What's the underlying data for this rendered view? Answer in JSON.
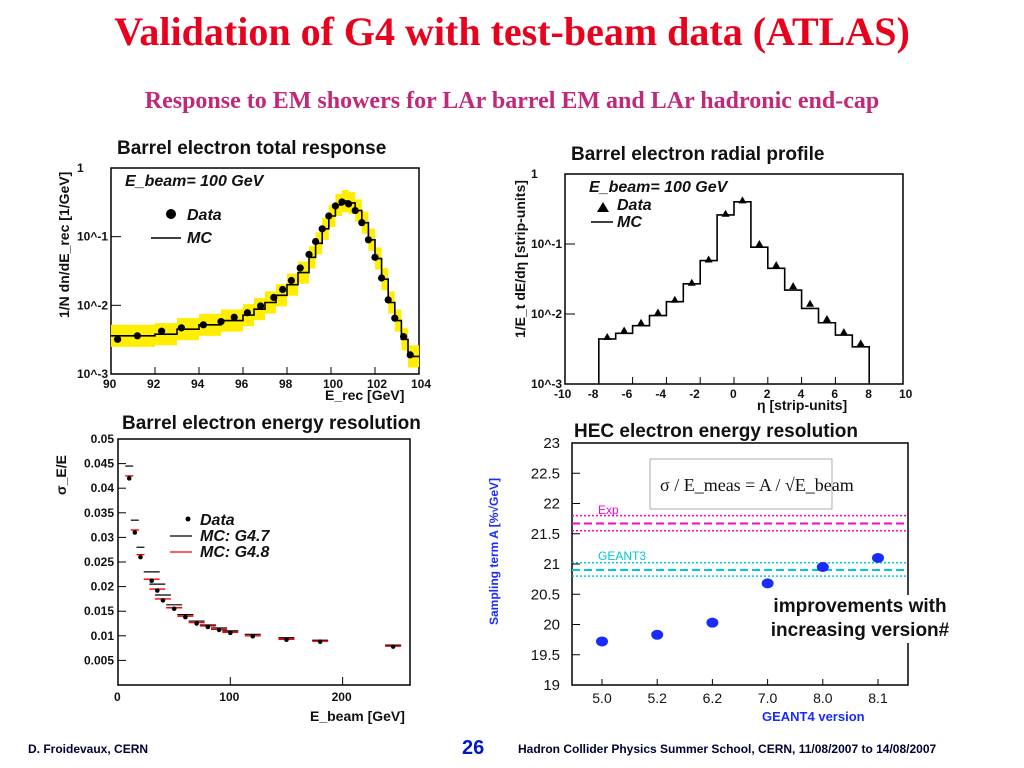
{
  "slide": {
    "title": "Validation of G4 with test-beam data (ATLAS)",
    "subtitle": "Response to EM showers for LAr barrel EM and LAr hadronic end-cap",
    "footer_left": "D. Froidevaux, CERN",
    "page_number": "26",
    "footer_right": "Hadron Collider Physics Summer School, CERN, 11/08/2007 to 14/08/2007"
  },
  "colors": {
    "title": "#e8001c",
    "subtitle": "#c0287a",
    "band": "#ffee00",
    "mc_g48": "#ff0000",
    "hec_points": "#1a2bff",
    "exp_line": "#ff00cc",
    "geant3_line": "#00c8d8"
  },
  "chart_data": [
    {
      "id": "total-response",
      "type": "line",
      "title": "Barrel electron total response",
      "annotation": "E_beam= 100 GeV",
      "xlabel": "E_rec [GeV]",
      "ylabel": "1/N dn/dE_rec [1/GeV]",
      "xlim": [
        90,
        104
      ],
      "ylim": [
        0.001,
        1
      ],
      "yscale": "log",
      "xticks": [
        "90",
        "92",
        "94",
        "96",
        "98",
        "100",
        "102",
        "104"
      ],
      "yticks": [
        "10^-3",
        "10^-2",
        "10^-1",
        "1"
      ],
      "series": [
        {
          "name": "Data",
          "x": [
            90.3,
            91.2,
            92.3,
            93.2,
            94.2,
            95.0,
            95.6,
            96.2,
            96.8,
            97.4,
            97.8,
            98.2,
            98.6,
            99.0,
            99.3,
            99.6,
            99.9,
            100.2,
            100.5,
            100.8,
            101.1,
            101.4,
            101.7,
            102.0,
            102.3,
            102.6,
            102.9,
            103.3,
            103.6
          ],
          "y": [
            0.0032,
            0.0036,
            0.0042,
            0.0047,
            0.0052,
            0.0058,
            0.0067,
            0.0078,
            0.0098,
            0.013,
            0.017,
            0.023,
            0.035,
            0.055,
            0.085,
            0.13,
            0.2,
            0.28,
            0.32,
            0.3,
            0.24,
            0.16,
            0.09,
            0.05,
            0.025,
            0.012,
            0.0065,
            0.0035,
            0.0019
          ]
        },
        {
          "name": "MC",
          "x": [
            90,
            91,
            92,
            93,
            94,
            95,
            96,
            96.5,
            97,
            97.5,
            98,
            98.5,
            99,
            99.3,
            99.6,
            99.9,
            100.2,
            100.5,
            100.8,
            101.1,
            101.4,
            101.7,
            102,
            102.3,
            102.6,
            102.9,
            103.2,
            103.5,
            104
          ],
          "y": [
            0.0036,
            0.0036,
            0.0038,
            0.0045,
            0.0052,
            0.006,
            0.0072,
            0.0088,
            0.011,
            0.014,
            0.02,
            0.03,
            0.05,
            0.08,
            0.13,
            0.2,
            0.29,
            0.33,
            0.31,
            0.24,
            0.16,
            0.09,
            0.048,
            0.024,
            0.011,
            0.006,
            0.0032,
            0.0018,
            0.0018
          ]
        }
      ]
    },
    {
      "id": "radial-profile",
      "type": "line",
      "title": "Barrel electron radial profile",
      "annotation": "E_beam= 100 GeV",
      "xlabel": "η [strip-units]",
      "ylabel": "1/E_t dE/dη [strip-units]",
      "xlim": [
        -10,
        10
      ],
      "ylim": [
        0.001,
        1
      ],
      "yscale": "log",
      "xticks": [
        "-10",
        "-8",
        "-6",
        "-4",
        "-2",
        "0",
        "2",
        "4",
        "6",
        "8",
        "10"
      ],
      "yticks": [
        "10^-3",
        "10^-2",
        "10^-1",
        "1"
      ],
      "series": [
        {
          "name": "Data",
          "x": [
            -7.5,
            -6.5,
            -5.5,
            -4.5,
            -3.5,
            -2.5,
            -1.5,
            -0.5,
            0.5,
            1.5,
            2.5,
            3.5,
            4.5,
            5.5,
            6.5,
            7.5
          ],
          "y": [
            0.0047,
            0.0058,
            0.0075,
            0.0105,
            0.016,
            0.028,
            0.06,
            0.27,
            0.42,
            0.1,
            0.05,
            0.025,
            0.014,
            0.0085,
            0.0055,
            0.0038
          ]
        },
        {
          "name": "MC",
          "x": [
            -8,
            -7,
            -6,
            -5,
            -4,
            -3,
            -2,
            -1,
            0,
            1,
            2,
            3,
            4,
            5,
            6,
            7,
            8
          ],
          "y": [
            0.0044,
            0.0053,
            0.0068,
            0.0095,
            0.015,
            0.027,
            0.058,
            0.26,
            0.4,
            0.09,
            0.045,
            0.022,
            0.012,
            0.0075,
            0.005,
            0.0034,
            0.0034
          ]
        }
      ]
    },
    {
      "id": "energy-resolution",
      "type": "scatter",
      "title": "Barrel electron energy resolution",
      "xlabel": "E_beam [GeV]",
      "ylabel": "σ_E/E",
      "xlim": [
        0,
        260
      ],
      "ylim": [
        0,
        0.05
      ],
      "xticks": [
        "0",
        "100",
        "200"
      ],
      "yticks": [
        "0.005",
        "0.01",
        "0.015",
        "0.02",
        "0.025",
        "0.03",
        "0.035",
        "0.04",
        "0.045",
        "0.05"
      ],
      "x": [
        10,
        15,
        20,
        30,
        35,
        40,
        50,
        60,
        70,
        80,
        90,
        100,
        120,
        150,
        180,
        245
      ],
      "series": [
        {
          "name": "Data",
          "values": [
            0.042,
            0.031,
            0.026,
            0.0212,
            0.0192,
            0.0172,
            0.0155,
            0.0138,
            0.0125,
            0.0118,
            0.0112,
            0.0106,
            0.0099,
            0.0092,
            0.0088,
            0.0078
          ]
        },
        {
          "name": "MC: G4.7",
          "values": [
            0.0445,
            0.0335,
            0.028,
            0.023,
            0.0205,
            0.0183,
            0.0163,
            0.0143,
            0.013,
            0.0122,
            0.0116,
            0.011,
            0.0103,
            0.0096,
            0.0091,
            0.0081
          ]
        },
        {
          "name": "MC: G4.8",
          "values": [
            0.0425,
            0.0315,
            0.0265,
            0.0215,
            0.0195,
            0.0175,
            0.0157,
            0.014,
            0.0127,
            0.012,
            0.0113,
            0.0107,
            0.01,
            0.0093,
            0.0089,
            0.0079
          ]
        }
      ]
    },
    {
      "id": "hec-resolution",
      "type": "scatter",
      "title": "HEC electron energy resolution",
      "formula": "σ / E_meas = A / √E_beam",
      "xlabel": "GEANT4 version",
      "ylabel": "Sampling term A [%√GeV]",
      "ylim": [
        19,
        23
      ],
      "categories": [
        "5.0",
        "5.2",
        "6.2",
        "7.0",
        "8.0",
        "8.1"
      ],
      "yticks": [
        "19",
        "19.5",
        "20",
        "20.5",
        "21",
        "21.5",
        "22",
        "22.5",
        "23"
      ],
      "values": [
        19.72,
        19.83,
        20.03,
        20.68,
        20.95,
        21.1
      ],
      "bands": [
        {
          "name": "Exp",
          "center": 21.67,
          "low": 21.55,
          "high": 21.8
        },
        {
          "name": "GEANT3",
          "center": 20.9,
          "low": 20.8,
          "high": 21.02
        }
      ],
      "annotation": "improvements with increasing version#"
    }
  ]
}
